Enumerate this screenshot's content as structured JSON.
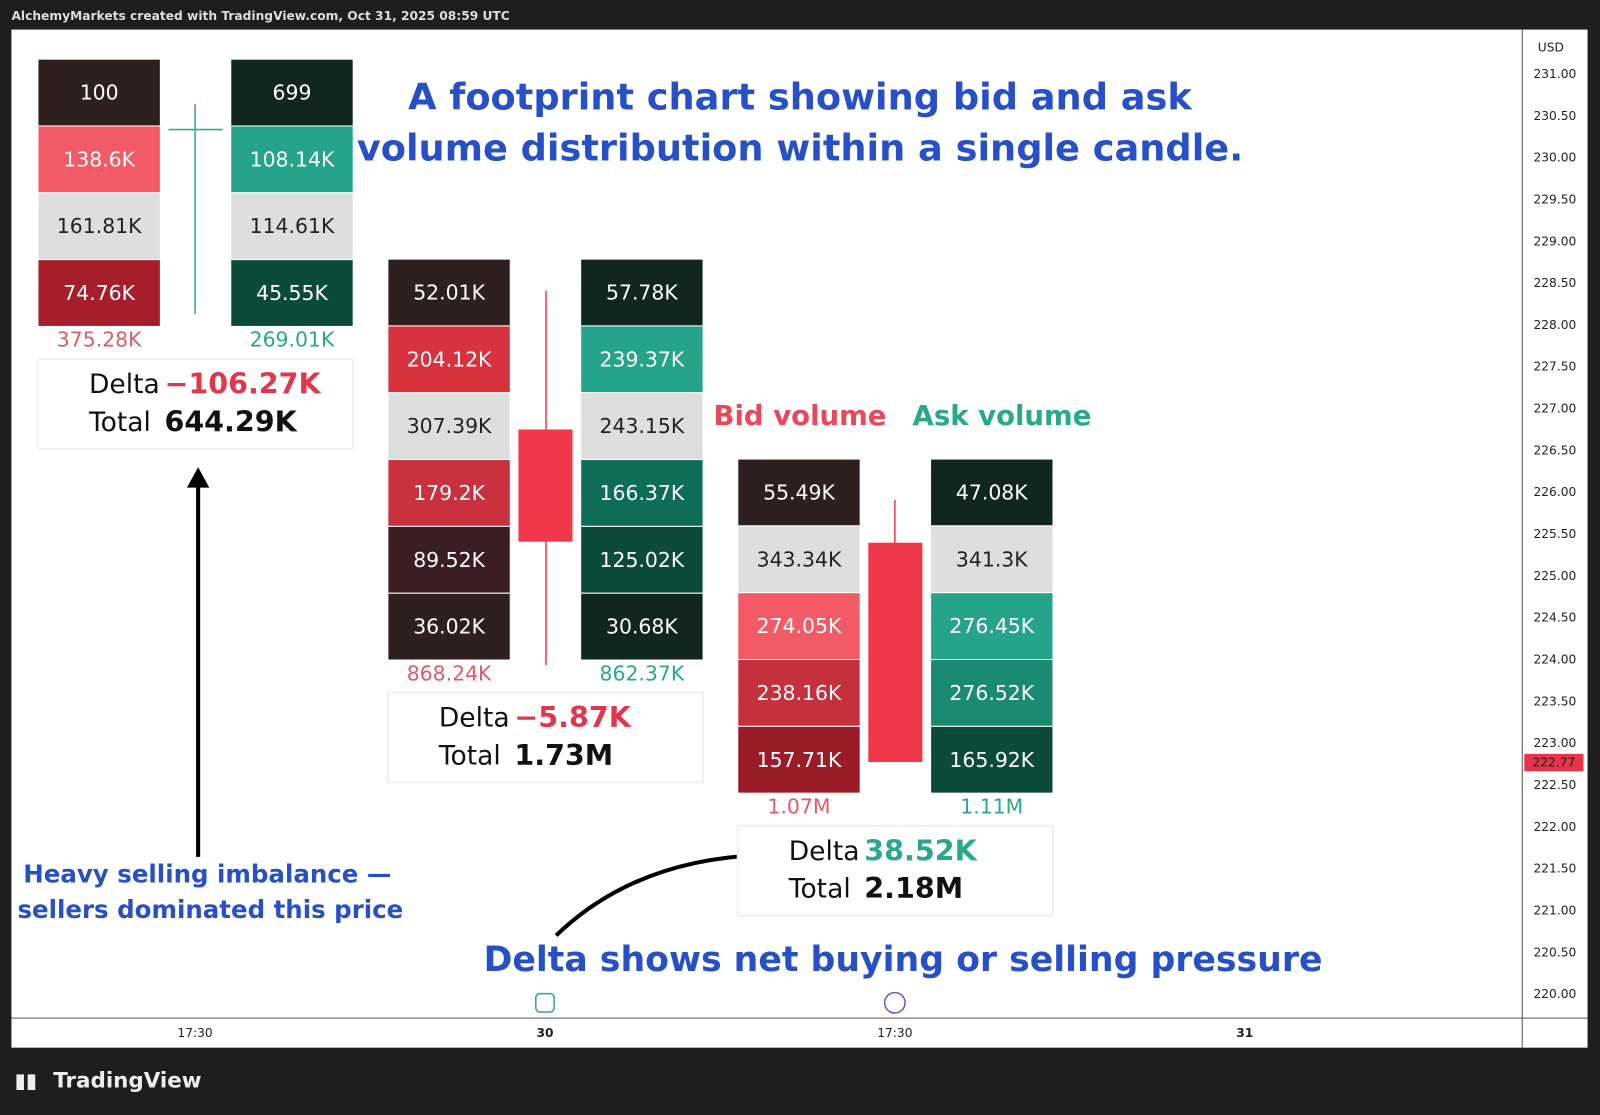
{
  "header": {
    "text": "AlchemyMarkets created with TradingView.com, Oct 31, 2025 08:59 UTC"
  },
  "title": {
    "lines": [
      "A footprint chart showing bid and ask",
      "volume distribution within a single candle."
    ]
  },
  "price_axis": {
    "currency": "USD",
    "labels": [
      "231.00",
      "230.50",
      "230.00",
      "229.50",
      "229.00",
      "228.50",
      "228.00",
      "227.50",
      "227.00",
      "226.50",
      "226.00",
      "225.50",
      "225.00",
      "224.50",
      "224.00",
      "223.50",
      "223.00",
      "222.50",
      "222.00",
      "221.50",
      "221.00",
      "220.50",
      "220.00"
    ],
    "current_price": "222.77"
  },
  "time_axis": {
    "labels": [
      "17:30",
      "30",
      "17:30",
      "31"
    ]
  },
  "legend": {
    "bid": "Bid volume",
    "ask": "Ask volume"
  },
  "footprints": [
    {
      "bid": [
        {
          "text": "100",
          "color": "#2f2020"
        },
        {
          "text": "138.6K",
          "color": "#f25b66"
        },
        {
          "text": "161.81K",
          "color": "#dedede"
        },
        {
          "text": "74.76K",
          "color": "#a61e2b"
        }
      ],
      "ask": [
        {
          "text": "699",
          "color": "#10261f"
        },
        {
          "text": "108.14K",
          "color": "#26a489"
        },
        {
          "text": "114.61K",
          "color": "#dedede"
        },
        {
          "text": "45.55K",
          "color": "#0c4a3a"
        }
      ],
      "bid_total": "375.28K",
      "ask_total": "269.01K",
      "delta_label": "Delta",
      "delta_value": "−106.27K",
      "total_label": "Total",
      "total_value": "644.29K"
    },
    {
      "bid": [
        {
          "text": "52.01K",
          "color": "#2f2020"
        },
        {
          "text": "204.12K",
          "color": "#d8323f"
        },
        {
          "text": "307.39K",
          "color": "#dedede"
        },
        {
          "text": "179.2K",
          "color": "#c8313d"
        },
        {
          "text": "89.52K",
          "color": "#3a1e22"
        },
        {
          "text": "36.02K",
          "color": "#2f2020"
        }
      ],
      "ask": [
        {
          "text": "57.78K",
          "color": "#10261f"
        },
        {
          "text": "239.37K",
          "color": "#26a489"
        },
        {
          "text": "243.15K",
          "color": "#dedede"
        },
        {
          "text": "166.37K",
          "color": "#0e6d57"
        },
        {
          "text": "125.02K",
          "color": "#0c4a3a"
        },
        {
          "text": "30.68K",
          "color": "#10261f"
        }
      ],
      "bid_total": "868.24K",
      "ask_total": "862.37K",
      "delta_label": "Delta",
      "delta_value": "−5.87K",
      "total_label": "Total",
      "total_value": "1.73M"
    },
    {
      "bid": [
        {
          "text": "55.49K",
          "color": "#2f2020"
        },
        {
          "text": "343.34K",
          "color": "#dedede"
        },
        {
          "text": "274.05K",
          "color": "#f25b66"
        },
        {
          "text": "238.16K",
          "color": "#c4303c"
        },
        {
          "text": "157.71K",
          "color": "#9a1c28"
        }
      ],
      "ask": [
        {
          "text": "47.08K",
          "color": "#10261f"
        },
        {
          "text": "341.3K",
          "color": "#dedede"
        },
        {
          "text": "276.45K",
          "color": "#26a489"
        },
        {
          "text": "276.52K",
          "color": "#1a8a70"
        },
        {
          "text": "165.92K",
          "color": "#0c4a3a"
        }
      ],
      "bid_total": "1.07M",
      "ask_total": "1.11M",
      "delta_label": "Delta",
      "delta_value": "38.52K",
      "total_label": "Total",
      "total_value": "2.18M"
    }
  ],
  "annotations": {
    "imbalance": [
      "Heavy selling imbalance —",
      "sellers dominated this price"
    ],
    "delta": "Delta shows net buying or selling pressure"
  },
  "footer": {
    "brand": "TradingView"
  }
}
